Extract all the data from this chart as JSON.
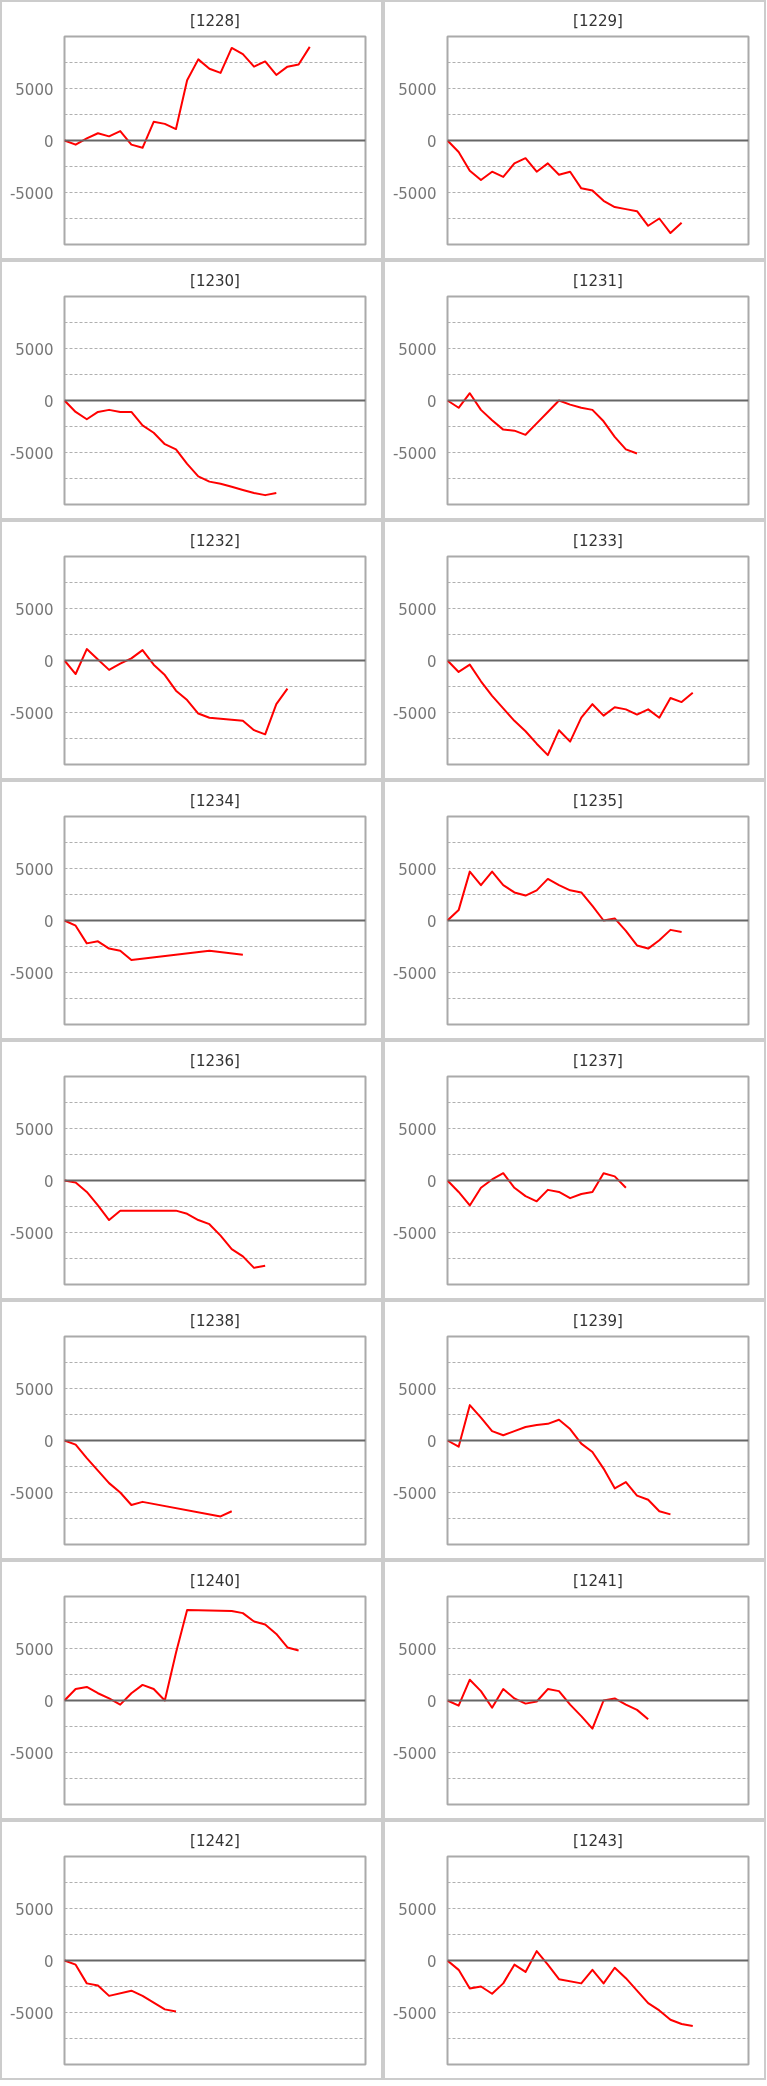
{
  "chart_data": [
    {
      "type": "line",
      "title": "[1228]",
      "categories": [
        null,
        null,
        null,
        null,
        null,
        null,
        null,
        null,
        null,
        null,
        null,
        null,
        null,
        null,
        null,
        null,
        null,
        null,
        null,
        null,
        null,
        null,
        null,
        null,
        null,
        null,
        null,
        null
      ],
      "ylim": [
        -10000,
        10000
      ],
      "yticks": [
        {
          "value": -7500,
          "label": null
        },
        -5000,
        {
          "value": -2500,
          "label": null
        },
        0,
        {
          "value": 2500,
          "label": null
        },
        5000,
        {
          "value": 7500,
          "label": null
        }
      ],
      "grid": "y",
      "ref_lines": [
        {
          "axis": "y",
          "value": 0,
          "color": "#666666"
        }
      ],
      "series": [
        {
          "color": "#ff0000",
          "values": [
            0,
            -400,
            200,
            700,
            400,
            900,
            -400,
            -700,
            1800,
            1600,
            1100,
            5800,
            7800,
            6900,
            6500,
            8900,
            8300,
            7100,
            7600,
            6300,
            7100,
            7300,
            9000,
            null,
            null,
            null,
            null,
            null
          ]
        }
      ]
    },
    {
      "type": "line",
      "title": "[1229]",
      "categories": [
        null,
        null,
        null,
        null,
        null,
        null,
        null,
        null,
        null,
        null,
        null,
        null,
        null,
        null,
        null,
        null,
        null,
        null,
        null,
        null,
        null,
        null,
        null,
        null,
        null,
        null,
        null,
        null
      ],
      "ylim": [
        -10000,
        10000
      ],
      "yticks": [
        {
          "value": -7500,
          "label": null
        },
        -5000,
        {
          "value": -2500,
          "label": null
        },
        0,
        {
          "value": 2500,
          "label": null
        },
        5000,
        {
          "value": 7500,
          "label": null
        }
      ],
      "grid": "y",
      "ref_lines": [
        {
          "axis": "y",
          "value": 0,
          "color": "#666666"
        }
      ],
      "series": [
        {
          "color": "#ff0000",
          "values": [
            0,
            -1100,
            -2900,
            -3800,
            -3000,
            -3500,
            -2200,
            -1700,
            -3000,
            -2200,
            -3300,
            -3000,
            -4600,
            -4800,
            -5800,
            -6400,
            -6600,
            -6800,
            -8200,
            -7500,
            -8900,
            -7900,
            null,
            null,
            null,
            null,
            null,
            null
          ]
        }
      ]
    },
    {
      "type": "line",
      "title": "[1230]",
      "categories": [
        null,
        null,
        null,
        null,
        null,
        null,
        null,
        null,
        null,
        null,
        null,
        null,
        null,
        null,
        null,
        null,
        null,
        null,
        null,
        null,
        null,
        null,
        null,
        null,
        null,
        null,
        null,
        null
      ],
      "ylim": [
        -10000,
        10000
      ],
      "yticks": [
        {
          "value": -7500,
          "label": null
        },
        -5000,
        {
          "value": -2500,
          "label": null
        },
        0,
        {
          "value": 2500,
          "label": null
        },
        5000,
        {
          "value": 7500,
          "label": null
        }
      ],
      "grid": "y",
      "ref_lines": [
        {
          "axis": "y",
          "value": 0,
          "color": "#666666"
        }
      ],
      "series": [
        {
          "color": "#ff0000",
          "values": [
            0,
            -1100,
            -1800,
            -1100,
            -900,
            -1100,
            -1100,
            -2400,
            -3100,
            -4200,
            -4700,
            -6100,
            -7300,
            -7800,
            -8000,
            -8300,
            -8600,
            -8900,
            -9100,
            -8900,
            null,
            null,
            null,
            null,
            null,
            null,
            null,
            null
          ]
        }
      ]
    },
    {
      "type": "line",
      "title": "[1231]",
      "categories": [
        null,
        null,
        null,
        null,
        null,
        null,
        null,
        null,
        null,
        null,
        null,
        null,
        null,
        null,
        null,
        null,
        null,
        null,
        null,
        null,
        null,
        null,
        null,
        null,
        null,
        null,
        null,
        null
      ],
      "ylim": [
        -10000,
        10000
      ],
      "yticks": [
        {
          "value": -7500,
          "label": null
        },
        -5000,
        {
          "value": -2500,
          "label": null
        },
        0,
        {
          "value": 2500,
          "label": null
        },
        5000,
        {
          "value": 7500,
          "label": null
        }
      ],
      "grid": "y",
      "ref_lines": [
        {
          "axis": "y",
          "value": 0,
          "color": "#666666"
        }
      ],
      "series": [
        {
          "color": "#ff0000",
          "values": [
            0,
            -700,
            700,
            -900,
            -1900,
            -2800,
            -2900,
            -3300,
            -2200,
            -1100,
            0,
            -400,
            -700,
            -900,
            -2000,
            -3500,
            -4700,
            -5100,
            null,
            null,
            null,
            null,
            null,
            null,
            null,
            null,
            null,
            null
          ]
        }
      ]
    },
    {
      "type": "line",
      "title": "[1232]",
      "categories": [
        null,
        null,
        null,
        null,
        null,
        null,
        null,
        null,
        null,
        null,
        null,
        null,
        null,
        null,
        null,
        null,
        null,
        null,
        null,
        null,
        null,
        null,
        null,
        null,
        null,
        null,
        null,
        null
      ],
      "ylim": [
        -10000,
        10000
      ],
      "yticks": [
        {
          "value": -7500,
          "label": null
        },
        -5000,
        {
          "value": -2500,
          "label": null
        },
        0,
        {
          "value": 2500,
          "label": null
        },
        5000,
        {
          "value": 7500,
          "label": null
        }
      ],
      "grid": "y",
      "ref_lines": [
        {
          "axis": "y",
          "value": 0,
          "color": "#666666"
        }
      ],
      "series": [
        {
          "color": "#ff0000",
          "values": [
            0,
            -1300,
            1100,
            100,
            -900,
            -300,
            200,
            1000,
            -400,
            -1400,
            -2900,
            -3800,
            -5100,
            -5500,
            -5600,
            -5700,
            -5800,
            -6700,
            -7100,
            -4200,
            -2700,
            null,
            null,
            null,
            null,
            null,
            null,
            null
          ]
        }
      ]
    },
    {
      "type": "line",
      "title": "[1233]",
      "categories": [
        null,
        null,
        null,
        null,
        null,
        null,
        null,
        null,
        null,
        null,
        null,
        null,
        null,
        null,
        null,
        null,
        null,
        null,
        null,
        null,
        null,
        null,
        null,
        null,
        null,
        null,
        null,
        null
      ],
      "ylim": [
        -10000,
        10000
      ],
      "yticks": [
        {
          "value": -7500,
          "label": null
        },
        -5000,
        {
          "value": -2500,
          "label": null
        },
        0,
        {
          "value": 2500,
          "label": null
        },
        5000,
        {
          "value": 7500,
          "label": null
        }
      ],
      "grid": "y",
      "ref_lines": [
        {
          "axis": "y",
          "value": 0,
          "color": "#666666"
        }
      ],
      "series": [
        {
          "color": "#ff0000",
          "values": [
            0,
            -1100,
            -400,
            -2000,
            -3400,
            -4600,
            -5800,
            -6800,
            -8000,
            -9100,
            -6700,
            -7800,
            -5500,
            -4200,
            -5300,
            -4500,
            -4700,
            -5200,
            -4700,
            -5500,
            -3600,
            -4000,
            -3100,
            null,
            null,
            null,
            null,
            null
          ]
        }
      ]
    },
    {
      "type": "line",
      "title": "[1234]",
      "categories": [
        null,
        null,
        null,
        null,
        null,
        null,
        null,
        null,
        null,
        null,
        null,
        null,
        null,
        null,
        null,
        null,
        null,
        null,
        null,
        null,
        null,
        null,
        null,
        null,
        null,
        null,
        null,
        null
      ],
      "ylim": [
        -10000,
        10000
      ],
      "yticks": [
        {
          "value": -7500,
          "label": null
        },
        -5000,
        {
          "value": -2500,
          "label": null
        },
        0,
        {
          "value": 2500,
          "label": null
        },
        5000,
        {
          "value": 7500,
          "label": null
        }
      ],
      "grid": "y",
      "ref_lines": [
        {
          "axis": "y",
          "value": 0,
          "color": "#666666"
        }
      ],
      "series": [
        {
          "color": "#ff0000",
          "values": [
            0,
            -500,
            -2200,
            -2000,
            -2700,
            -2900,
            -3800,
            null,
            null,
            null,
            null,
            null,
            null,
            -2900,
            null,
            null,
            -3300,
            null,
            null,
            null,
            null,
            null,
            null,
            null,
            null,
            null,
            null,
            null
          ]
        }
      ]
    },
    {
      "type": "line",
      "title": "[1235]",
      "categories": [
        null,
        null,
        null,
        null,
        null,
        null,
        null,
        null,
        null,
        null,
        null,
        null,
        null,
        null,
        null,
        null,
        null,
        null,
        null,
        null,
        null,
        null,
        null,
        null,
        null,
        null,
        null,
        null
      ],
      "ylim": [
        -10000,
        10000
      ],
      "yticks": [
        {
          "value": -7500,
          "label": null
        },
        -5000,
        {
          "value": -2500,
          "label": null
        },
        0,
        {
          "value": 2500,
          "label": null
        },
        5000,
        {
          "value": 7500,
          "label": null
        }
      ],
      "grid": "y",
      "ref_lines": [
        {
          "axis": "y",
          "value": 0,
          "color": "#666666"
        }
      ],
      "series": [
        {
          "color": "#ff0000",
          "values": [
            0,
            1000,
            4700,
            3400,
            4700,
            3400,
            2700,
            2400,
            2900,
            4000,
            3400,
            2900,
            2700,
            1400,
            0,
            200,
            -1000,
            -2400,
            -2700,
            -1900,
            -900,
            -1100,
            null,
            null,
            null,
            null,
            null,
            null
          ]
        }
      ]
    },
    {
      "type": "line",
      "title": "[1236]",
      "categories": [
        null,
        null,
        null,
        null,
        null,
        null,
        null,
        null,
        null,
        null,
        null,
        null,
        null,
        null,
        null,
        null,
        null,
        null,
        null,
        null,
        null,
        null,
        null,
        null,
        null,
        null,
        null,
        null
      ],
      "ylim": [
        -10000,
        10000
      ],
      "yticks": [
        {
          "value": -7500,
          "label": null
        },
        -5000,
        {
          "value": -2500,
          "label": null
        },
        0,
        {
          "value": 2500,
          "label": null
        },
        5000,
        {
          "value": 7500,
          "label": null
        }
      ],
      "grid": "y",
      "ref_lines": [
        {
          "axis": "y",
          "value": 0,
          "color": "#666666"
        }
      ],
      "series": [
        {
          "color": "#ff0000",
          "values": [
            0,
            -200,
            -1100,
            -2400,
            -3800,
            -2900,
            null,
            null,
            null,
            null,
            -2900,
            -3200,
            -3800,
            -4200,
            -5300,
            -6600,
            -7300,
            -8400,
            -8200,
            null,
            null,
            null,
            null,
            null,
            null,
            null,
            null,
            null
          ]
        }
      ]
    },
    {
      "type": "line",
      "title": "[1237]",
      "categories": [
        null,
        null,
        null,
        null,
        null,
        null,
        null,
        null,
        null,
        null,
        null,
        null,
        null,
        null,
        null,
        null,
        null,
        null,
        null,
        null,
        null,
        null,
        null,
        null,
        null,
        null,
        null,
        null
      ],
      "ylim": [
        -10000,
        10000
      ],
      "yticks": [
        {
          "value": -7500,
          "label": null
        },
        -5000,
        {
          "value": -2500,
          "label": null
        },
        0,
        {
          "value": 2500,
          "label": null
        },
        5000,
        {
          "value": 7500,
          "label": null
        }
      ],
      "grid": "y",
      "ref_lines": [
        {
          "axis": "y",
          "value": 0,
          "color": "#666666"
        }
      ],
      "series": [
        {
          "color": "#ff0000",
          "values": [
            0,
            -1100,
            -2400,
            -700,
            100,
            700,
            -700,
            -1500,
            -2000,
            -900,
            -1100,
            -1700,
            -1300,
            -1100,
            700,
            400,
            -700,
            null,
            null,
            null,
            null,
            null,
            null,
            null,
            null,
            null,
            null,
            null
          ]
        }
      ]
    },
    {
      "type": "line",
      "title": "[1238]",
      "categories": [
        null,
        null,
        null,
        null,
        null,
        null,
        null,
        null,
        null,
        null,
        null,
        null,
        null,
        null,
        null,
        null,
        null,
        null,
        null,
        null,
        null,
        null,
        null,
        null,
        null,
        null,
        null,
        null
      ],
      "ylim": [
        -10000,
        10000
      ],
      "yticks": [
        {
          "value": -7500,
          "label": null
        },
        -5000,
        {
          "value": -2500,
          "label": null
        },
        0,
        {
          "value": 2500,
          "label": null
        },
        5000,
        {
          "value": 7500,
          "label": null
        }
      ],
      "grid": "y",
      "ref_lines": [
        {
          "axis": "y",
          "value": 0,
          "color": "#666666"
        }
      ],
      "series": [
        {
          "color": "#ff0000",
          "values": [
            0,
            -400,
            -1700,
            -2900,
            -4100,
            -5000,
            -6200,
            -5900,
            null,
            null,
            null,
            null,
            null,
            null,
            -7300,
            -6800,
            null,
            null,
            null,
            null,
            null,
            null,
            null,
            null,
            null,
            null,
            null,
            null
          ]
        }
      ]
    },
    {
      "type": "line",
      "title": "[1239]",
      "categories": [
        null,
        null,
        null,
        null,
        null,
        null,
        null,
        null,
        null,
        null,
        null,
        null,
        null,
        null,
        null,
        null,
        null,
        null,
        null,
        null,
        null,
        null,
        null,
        null,
        null,
        null,
        null,
        null
      ],
      "ylim": [
        -10000,
        10000
      ],
      "yticks": [
        {
          "value": -7500,
          "label": null
        },
        -5000,
        {
          "value": -2500,
          "label": null
        },
        0,
        {
          "value": 2500,
          "label": null
        },
        5000,
        {
          "value": 7500,
          "label": null
        }
      ],
      "grid": "y",
      "ref_lines": [
        {
          "axis": "y",
          "value": 0,
          "color": "#666666"
        }
      ],
      "series": [
        {
          "color": "#ff0000",
          "values": [
            0,
            -600,
            3400,
            2200,
            900,
            500,
            900,
            1300,
            1500,
            1600,
            2000,
            1100,
            -300,
            -1100,
            -2700,
            -4600,
            -4000,
            -5300,
            -5700,
            -6800,
            -7100,
            null,
            null,
            null,
            null,
            null,
            null,
            null
          ]
        }
      ]
    },
    {
      "type": "line",
      "title": "[1240]",
      "categories": [
        null,
        null,
        null,
        null,
        null,
        null,
        null,
        null,
        null,
        null,
        null,
        null,
        null,
        null,
        null,
        null,
        null,
        null,
        null,
        null,
        null,
        null,
        null,
        null,
        null,
        null,
        null,
        null
      ],
      "ylim": [
        -10000,
        10000
      ],
      "yticks": [
        {
          "value": -7500,
          "label": null
        },
        -5000,
        {
          "value": -2500,
          "label": null
        },
        0,
        {
          "value": 2500,
          "label": null
        },
        5000,
        {
          "value": 7500,
          "label": null
        }
      ],
      "grid": "y",
      "ref_lines": [
        {
          "axis": "y",
          "value": 0,
          "color": "#666666"
        }
      ],
      "series": [
        {
          "color": "#ff0000",
          "values": [
            0,
            1100,
            1300,
            700,
            200,
            -400,
            700,
            1500,
            1100,
            0,
            4600,
            8700,
            null,
            null,
            null,
            8600,
            8400,
            7600,
            7300,
            6400,
            5100,
            4800,
            null,
            null,
            null,
            null,
            null,
            null
          ]
        }
      ]
    },
    {
      "type": "line",
      "title": "[1241]",
      "categories": [
        null,
        null,
        null,
        null,
        null,
        null,
        null,
        null,
        null,
        null,
        null,
        null,
        null,
        null,
        null,
        null,
        null,
        null,
        null,
        null,
        null,
        null,
        null,
        null,
        null,
        null,
        null,
        null
      ],
      "ylim": [
        -10000,
        10000
      ],
      "yticks": [
        {
          "value": -7500,
          "label": null
        },
        -5000,
        {
          "value": -2500,
          "label": null
        },
        0,
        {
          "value": 2500,
          "label": null
        },
        5000,
        {
          "value": 7500,
          "label": null
        }
      ],
      "grid": "y",
      "ref_lines": [
        {
          "axis": "y",
          "value": 0,
          "color": "#666666"
        }
      ],
      "series": [
        {
          "color": "#ff0000",
          "values": [
            0,
            -500,
            2000,
            900,
            -700,
            1100,
            200,
            -300,
            -100,
            1100,
            900,
            -400,
            -1500,
            -2700,
            0,
            200,
            -400,
            -900,
            -1800,
            null,
            null,
            null,
            null,
            null,
            null,
            null,
            null,
            null
          ]
        }
      ]
    },
    {
      "type": "line",
      "title": "[1242]",
      "categories": [
        null,
        null,
        null,
        null,
        null,
        null,
        null,
        null,
        null,
        null,
        null,
        null,
        null,
        null,
        null,
        null,
        null,
        null,
        null,
        null,
        null,
        null,
        null,
        null,
        null,
        null,
        null,
        null
      ],
      "ylim": [
        -10000,
        10000
      ],
      "yticks": [
        {
          "value": -7500,
          "label": null
        },
        -5000,
        {
          "value": -2500,
          "label": null
        },
        0,
        {
          "value": 2500,
          "label": null
        },
        5000,
        {
          "value": 7500,
          "label": null
        }
      ],
      "grid": "y",
      "ref_lines": [
        {
          "axis": "y",
          "value": 0,
          "color": "#666666"
        }
      ],
      "series": [
        {
          "color": "#ff0000",
          "values": [
            0,
            -400,
            -2200,
            -2400,
            -3400,
            null,
            -2900,
            -3400,
            null,
            -4700,
            -4900,
            null,
            null,
            null,
            null,
            null,
            null,
            null,
            null,
            null,
            null,
            null,
            null,
            null,
            null,
            null,
            null,
            null
          ]
        }
      ]
    },
    {
      "type": "line",
      "title": "[1243]",
      "categories": [
        null,
        null,
        null,
        null,
        null,
        null,
        null,
        null,
        null,
        null,
        null,
        null,
        null,
        null,
        null,
        null,
        null,
        null,
        null,
        null,
        null,
        null,
        null,
        null,
        null,
        null,
        null,
        null
      ],
      "ylim": [
        -10000,
        10000
      ],
      "yticks": [
        {
          "value": -7500,
          "label": null
        },
        -5000,
        {
          "value": -2500,
          "label": null
        },
        0,
        {
          "value": 2500,
          "label": null
        },
        5000,
        {
          "value": 7500,
          "label": null
        }
      ],
      "grid": "y",
      "ref_lines": [
        {
          "axis": "y",
          "value": 0,
          "color": "#666666"
        }
      ],
      "series": [
        {
          "color": "#ff0000",
          "values": [
            0,
            -900,
            -2700,
            -2500,
            -3200,
            -2200,
            -400,
            -1100,
            900,
            -400,
            -1800,
            null,
            -2200,
            -900,
            -2200,
            -700,
            -1700,
            -2900,
            -4100,
            -4800,
            -5700,
            -6100,
            -6300,
            null,
            null,
            null,
            null,
            null
          ]
        }
      ]
    }
  ]
}
